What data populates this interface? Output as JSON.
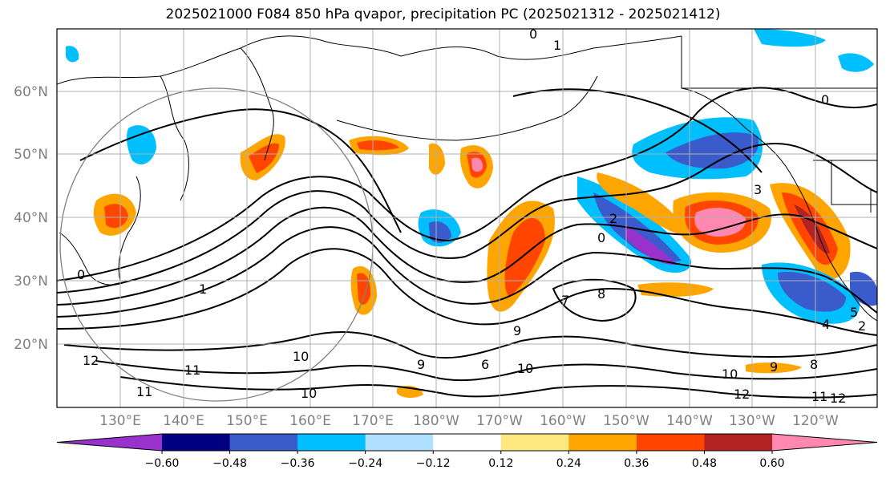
{
  "title": "2025021000 F084 850 hPa qvapor, precipitation PC (2025021312 - 2025021412)",
  "map": {
    "lat_labels": [
      "60°N",
      "50°N",
      "40°N",
      "30°N",
      "20°N"
    ],
    "lon_labels": [
      "130°E",
      "140°E",
      "150°E",
      "160°E",
      "170°E",
      "180°W",
      "170°W",
      "160°W",
      "150°W",
      "140°W",
      "130°W",
      "120°W"
    ],
    "contour_labels": [
      "0",
      "0",
      "0",
      "0",
      "1",
      "1",
      "2",
      "2",
      "3",
      "4",
      "5",
      "6",
      "7",
      "8",
      "8",
      "9",
      "9",
      "9",
      "10",
      "10",
      "10",
      "10",
      "11",
      "11",
      "11",
      "12",
      "12",
      "12"
    ],
    "gridline_color": "#b0b0b0",
    "range_circle_color": "#808080"
  },
  "colorbar": {
    "colors": [
      "#9932cc",
      "#000080",
      "#3a5bcc",
      "#00bfff",
      "#b0e0ff",
      "#ffffff",
      "#ffe880",
      "#ffa500",
      "#ff4500",
      "#b22222",
      "#ff88b0"
    ],
    "ticks": [
      "−0.60",
      "−0.48",
      "−0.36",
      "−0.24",
      "−0.12",
      "0.12",
      "0.24",
      "0.36",
      "0.48",
      "0.60"
    ]
  }
}
